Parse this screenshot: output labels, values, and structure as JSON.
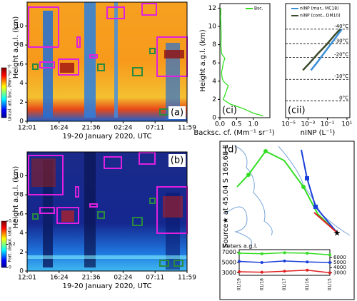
{
  "chart_data": [
    {
      "type": "heatmap",
      "label": "(a)",
      "ylabel": "Height a.g.l. (km)",
      "xlabel": "19-20 January 2020, UTC",
      "xticks": [
        "12:01",
        "16:24",
        "21:36",
        "02:24",
        "07:11",
        "11:59"
      ],
      "ylim": [
        0,
        12.5
      ],
      "yticks": [
        0,
        2,
        4,
        6,
        8,
        10
      ],
      "colorbar_label": "Uncal. att. bsc. (Mm⁻¹sr⁻¹)"
    },
    {
      "type": "heatmap",
      "label": "(b)",
      "ylabel": "Height a.g.l. (km)",
      "xlabel": "19-20 January 2020, UTC",
      "xticks": [
        "12:01",
        "16:24",
        "21:36",
        "02:24",
        "07:11",
        "11:59"
      ],
      "ylim": [
        0,
        12.5
      ],
      "yticks": [
        0,
        2,
        4,
        6,
        8,
        10
      ],
      "colorbar_label": "Part. depol. ratio",
      "clim": [
        0,
        0.4
      ],
      "colorbar_ticks": [
        0,
        0.2,
        0.4
      ]
    },
    {
      "type": "profile",
      "label": "(ci)",
      "ylabel": "Height a.g.l. (km)",
      "xlabel": "Backsc. cf. (Mm⁻¹ sr⁻¹)",
      "xlim": [
        0,
        1.5
      ],
      "xticks": [
        {
          "value": 0,
          "label": "0.0"
        },
        {
          "value": 0.5,
          "label": "0.5"
        },
        {
          "value": 1,
          "label": "1.0"
        }
      ],
      "ylim": [
        0,
        12.5
      ],
      "yticks": [
        0,
        2,
        4,
        6,
        8,
        10,
        12
      ],
      "y": [
        0.2,
        0.5,
        1,
        1.5,
        2,
        2.5,
        3,
        3.5,
        4,
        4.5,
        5,
        5.5,
        6,
        6.5,
        7,
        7.5,
        8,
        9,
        10,
        11,
        12
      ],
      "series": [
        {
          "name": "Bsc.",
          "color": "#33dd22",
          "values": [
            1.3,
            1.0,
            0.7,
            0.3,
            0.1,
            0.15,
            0.2,
            0.25,
            0.1,
            0.06,
            0.05,
            0.08,
            0.1,
            0.15,
            0.05,
            0.04,
            0.03,
            0.04,
            0.03,
            0.02,
            0.03
          ]
        }
      ]
    },
    {
      "type": "profile",
      "label": "(cii)",
      "xlabel": "nINP (L⁻¹)",
      "xlog": true,
      "xlim": [
        5e-06,
        20
      ],
      "xticks": [
        {
          "value": 1e-05,
          "label": "10⁻⁵"
        },
        {
          "value": 0.001,
          "label": "10⁻³"
        },
        {
          "value": 0.1,
          "label": "10⁻¹"
        },
        {
          "value": 10,
          "label": "10¹"
        }
      ],
      "ylim": [
        0,
        12.5
      ],
      "y": [
        9.7,
        9,
        8,
        7,
        6,
        5.2
      ],
      "series": [
        {
          "name": "nINP (mar., MC18)",
          "color": "#3a8fd8",
          "values": [
            3,
            1,
            0.2,
            0.04,
            0.008,
            0.002
          ]
        },
        {
          "name": "nINP (cont., DM10)",
          "color": "#3b4a2a",
          "values": [
            2,
            0.5,
            0.08,
            0.01,
            0.0015,
            0.0003
          ]
        }
      ],
      "isotherms": [
        {
          "label": "-40°C",
          "height": 9.7
        },
        {
          "label": "-30°C",
          "height": 8.1
        },
        {
          "label": "-20°C",
          "height": 6.6
        },
        {
          "label": "-10°C",
          "height": 4.2
        },
        {
          "label": "0°C",
          "height": 1.85
        }
      ]
    },
    {
      "type": "trajectory",
      "label": "(d)",
      "source": "Source★ at 45.04 S 169.68 E",
      "ylabel": "Meters a.g.l.",
      "categories": [
        "01/19",
        "01/18",
        "01/17",
        "01/16",
        "01/15"
      ],
      "ylim": [
        2500,
        7500
      ],
      "yticks": [
        3000,
        5000,
        7000
      ],
      "y2lim": [
        2500,
        7500
      ],
      "y2ticks": [
        3000,
        4000,
        5000,
        6000
      ],
      "series": [
        {
          "name": "7000",
          "color": "#33dd22",
          "values": [
            6800,
            6700,
            6900,
            6800,
            6500
          ]
        },
        {
          "name": "5000",
          "color": "#1a3fd8",
          "values": [
            5200,
            5000,
            5300,
            5100,
            5000
          ]
        },
        {
          "name": "3000",
          "color": "#e02020",
          "values": [
            3200,
            3100,
            3300,
            3500,
            3000
          ]
        }
      ]
    }
  ]
}
